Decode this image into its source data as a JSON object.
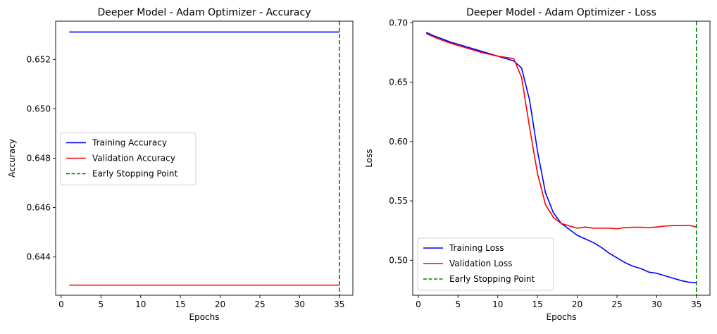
{
  "chart_data": [
    {
      "type": "line",
      "title": "Deeper Model - Adam Optimizer - Accuracy",
      "xlabel": "Epochs",
      "ylabel": "Accuracy",
      "xlim": [
        -0.7,
        36.7
      ],
      "ylim": [
        0.64245,
        0.65355
      ],
      "xticks": [
        0,
        5,
        10,
        15,
        20,
        25,
        30,
        35
      ],
      "yticks": [
        0.644,
        0.646,
        0.648,
        0.65,
        0.652
      ],
      "ytick_labels": [
        "0.644",
        "0.646",
        "0.648",
        "0.650",
        "0.652"
      ],
      "grid": false,
      "legend_position": "center-left",
      "x": [
        1,
        35
      ],
      "series": [
        {
          "name": "Training Accuracy",
          "color": "#0000ff",
          "values": [
            0.65311,
            0.65311
          ]
        },
        {
          "name": "Validation Accuracy",
          "color": "#ff0000",
          "values": [
            0.64286,
            0.64286
          ]
        }
      ],
      "vline": {
        "name": "Early Stopping Point",
        "x": 35,
        "color": "#008000",
        "style": "dashed"
      }
    },
    {
      "type": "line",
      "title": "Deeper Model - Adam Optimizer - Loss",
      "xlabel": "Epochs",
      "ylabel": "Loss",
      "xlim": [
        -0.7,
        36.7
      ],
      "ylim": [
        0.4705,
        0.7015
      ],
      "xticks": [
        0,
        5,
        10,
        15,
        20,
        25,
        30,
        35
      ],
      "yticks": [
        0.5,
        0.55,
        0.6,
        0.65,
        0.7
      ],
      "ytick_labels": [
        "0.50",
        "0.55",
        "0.60",
        "0.65",
        "0.70"
      ],
      "grid": false,
      "legend_position": "lower-left",
      "x": [
        1,
        2,
        3,
        4,
        5,
        6,
        7,
        8,
        9,
        10,
        11,
        12,
        13,
        14,
        15,
        16,
        17,
        18,
        19,
        20,
        21,
        22,
        23,
        24,
        25,
        26,
        27,
        28,
        29,
        30,
        31,
        32,
        33,
        34,
        35
      ],
      "series": [
        {
          "name": "Training Loss",
          "color": "#0000ff",
          "values": [
            0.692,
            0.689,
            0.6865,
            0.684,
            0.682,
            0.68,
            0.678,
            0.676,
            0.674,
            0.672,
            0.67,
            0.668,
            0.662,
            0.635,
            0.592,
            0.557,
            0.54,
            0.531,
            0.526,
            0.521,
            0.518,
            0.515,
            0.511,
            0.506,
            0.502,
            0.498,
            0.495,
            0.493,
            0.49,
            0.489,
            0.487,
            0.485,
            0.483,
            0.4815,
            0.481
          ]
        },
        {
          "name": "Validation Loss",
          "color": "#ff0000",
          "values": [
            0.691,
            0.688,
            0.6855,
            0.683,
            0.681,
            0.679,
            0.677,
            0.675,
            0.6735,
            0.672,
            0.671,
            0.67,
            0.654,
            0.612,
            0.573,
            0.547,
            0.536,
            0.531,
            0.529,
            0.527,
            0.528,
            0.527,
            0.527,
            0.527,
            0.5265,
            0.5275,
            0.5278,
            0.5278,
            0.5275,
            0.528,
            0.5288,
            0.5292,
            0.5292,
            0.5295,
            0.528
          ]
        }
      ],
      "vline": {
        "name": "Early Stopping Point",
        "x": 35,
        "color": "#008000",
        "style": "dashed"
      }
    }
  ]
}
